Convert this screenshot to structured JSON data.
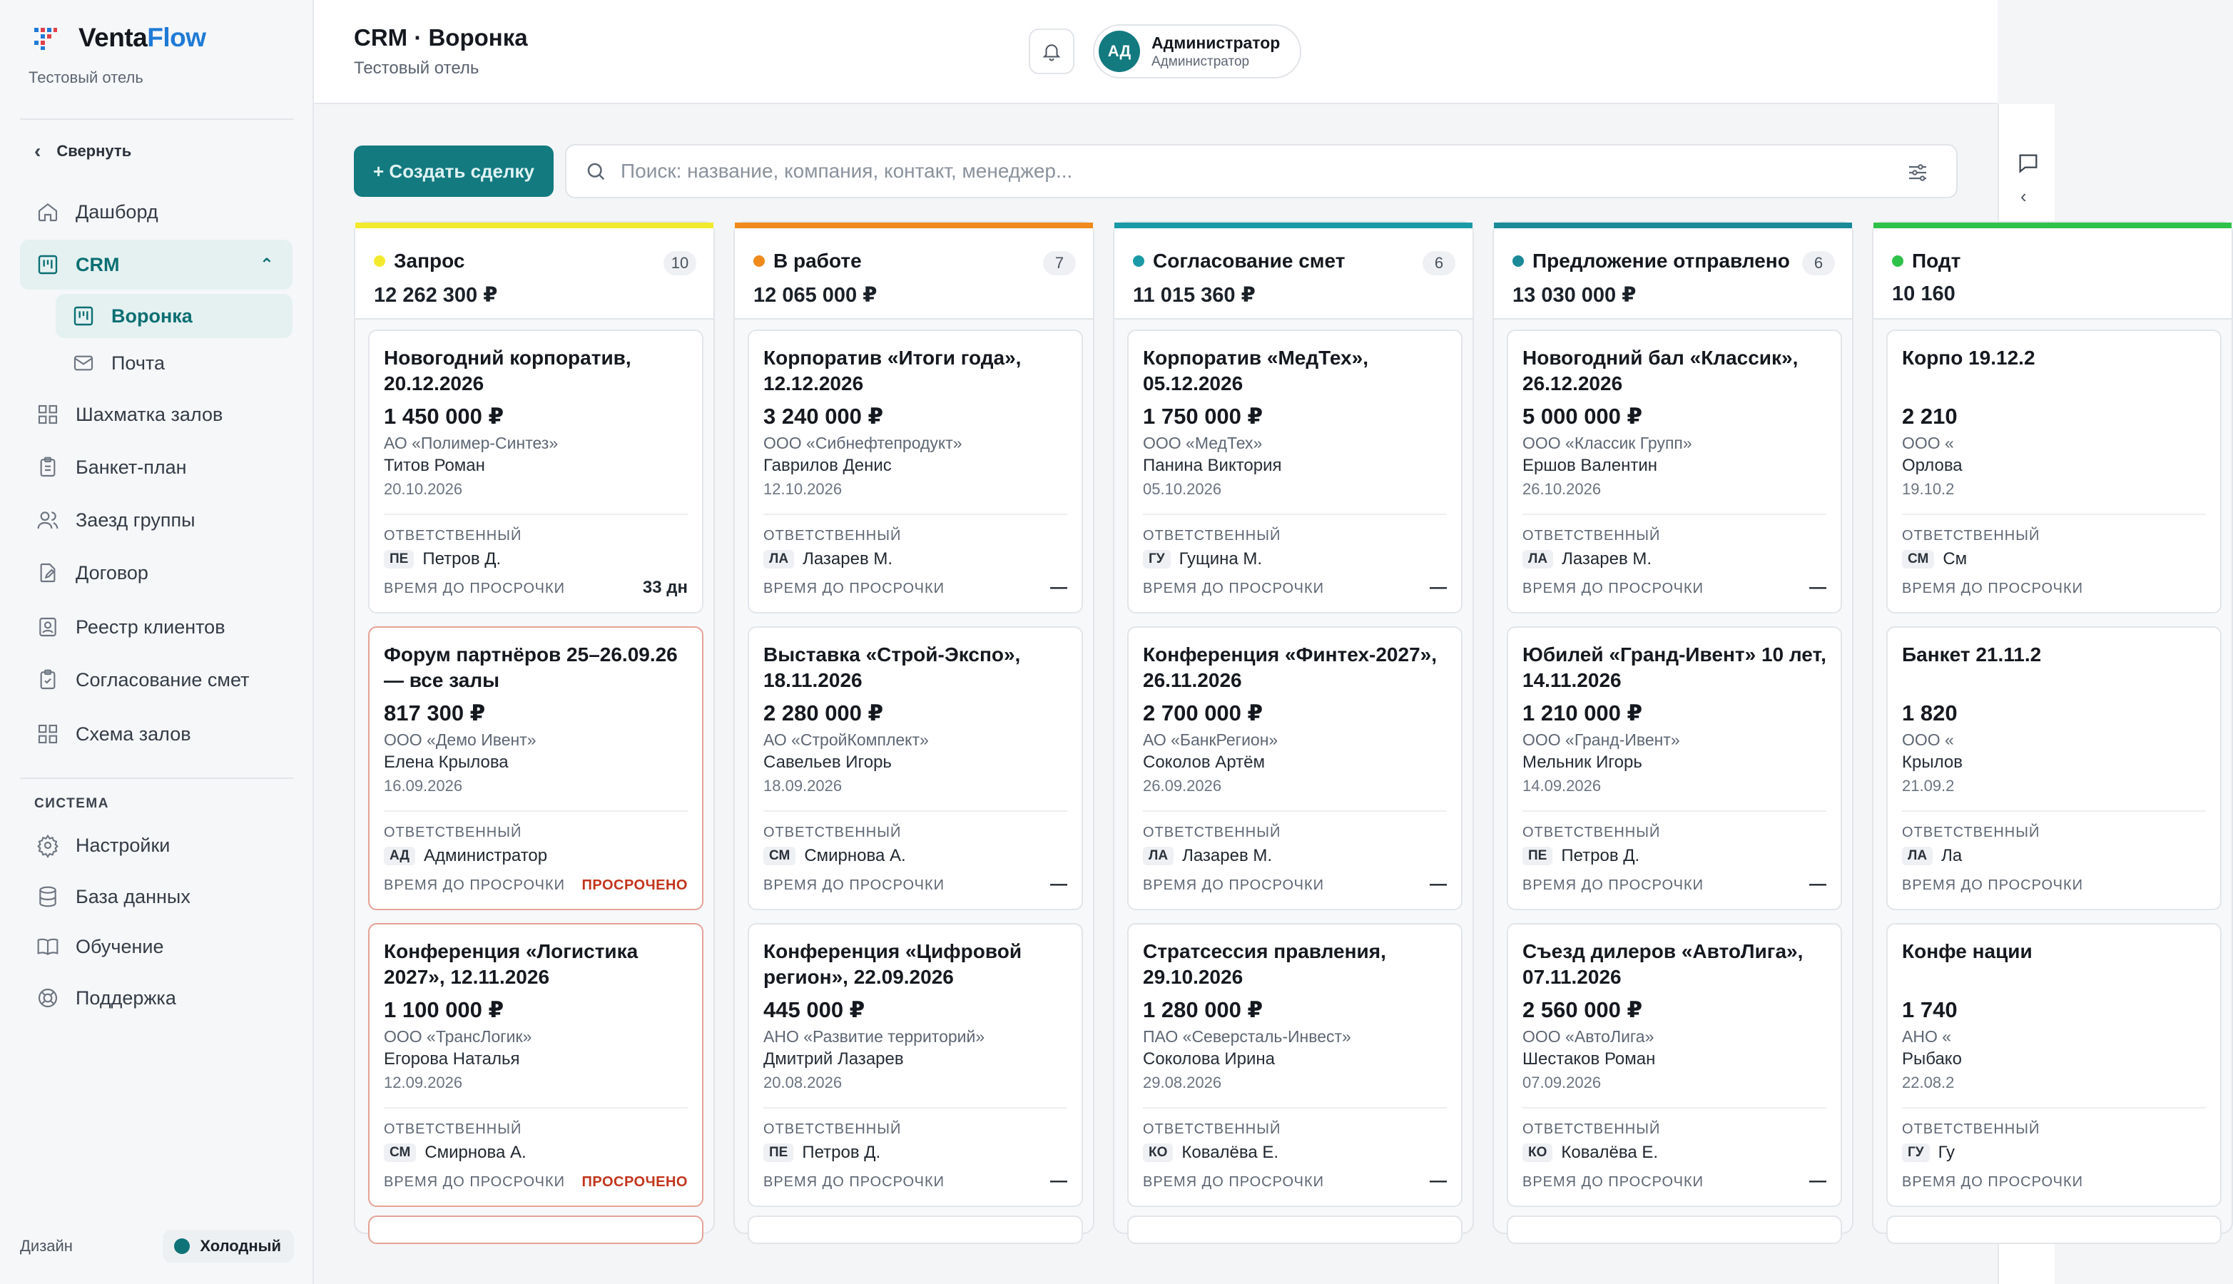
{
  "app": {
    "logo_part1": "Venta",
    "logo_part2": "Flow",
    "org": "Тестовый отель"
  },
  "sidebar": {
    "collapse_label": "Свернуть",
    "items": [
      {
        "label": "Дашборд",
        "icon": "home-icon"
      },
      {
        "label": "CRM",
        "icon": "crm-icon"
      },
      {
        "label": "Воронка",
        "icon": "funnel-icon"
      },
      {
        "label": "Почта",
        "icon": "mail-icon"
      },
      {
        "label": "Шахматка залов",
        "icon": "grid-icon"
      },
      {
        "label": "Банкет-план",
        "icon": "clipboard-icon"
      },
      {
        "label": "Заезд группы",
        "icon": "users-icon"
      },
      {
        "label": "Договор",
        "icon": "document-edit-icon"
      },
      {
        "label": "Реестр клиентов",
        "icon": "contact-icon"
      },
      {
        "label": "Согласование смет",
        "icon": "clipboard-check-icon"
      },
      {
        "label": "Схема залов",
        "icon": "grid-icon"
      }
    ],
    "system_title": "СИСТЕМА",
    "system_items": [
      {
        "label": "Настройки",
        "icon": "gear-icon"
      },
      {
        "label": "База данных",
        "icon": "database-icon"
      },
      {
        "label": "Обучение",
        "icon": "book-icon"
      },
      {
        "label": "Поддержка",
        "icon": "lifebuoy-icon"
      }
    ],
    "design_label": "Дизайн",
    "theme_label": "Холодный",
    "theme_color": "#0f7378"
  },
  "header": {
    "title": "CRM · Воронка",
    "subtitle": "Тестовый отель",
    "user_initials": "АД",
    "user_name": "Администратор",
    "user_role": "Администратор"
  },
  "toolbar": {
    "create_label": "+ Создать сделку",
    "search_placeholder": "Поиск: название, компания, контакт, менеджер..."
  },
  "labels": {
    "responsible": "ОТВЕТСТВЕННЫЙ",
    "due": "ВРЕМЯ ДО ПРОСРОЧКИ"
  },
  "columns": [
    {
      "name": "Запрос",
      "count": "10",
      "sum": "12 262 300 ₽",
      "color": "#f3ea2e",
      "cards": [
        {
          "title": "Новогодний корпоратив, 20.12.2026",
          "amount": "1 450 000 ₽",
          "company": "АО «Полимер-Синтез»",
          "contact": "Титов Роман",
          "date": "20.10.2026",
          "initials": "ПЕ",
          "manager": "Петров Д.",
          "due": "33 дн",
          "overdue": false
        },
        {
          "title": "Форум партнёров 25–26.09.26 — все залы",
          "amount": "817 300 ₽",
          "company": "ООО «Демо Ивент»",
          "contact": "Елена Крылова",
          "date": "16.09.2026",
          "initials": "АД",
          "manager": "Администратор",
          "due": "ПРОСРОЧЕНО",
          "overdue": true
        },
        {
          "title": "Конференция «Логистика 2027», 12.11.2026",
          "amount": "1 100 000 ₽",
          "company": "ООО «ТрансЛогик»",
          "contact": "Егорова Наталья",
          "date": "12.09.2026",
          "initials": "СМ",
          "manager": "Смирнова А.",
          "due": "ПРОСРОЧЕНО",
          "overdue": true
        }
      ]
    },
    {
      "name": "В работе",
      "count": "7",
      "sum": "12 065 000 ₽",
      "color": "#f08a1c",
      "cards": [
        {
          "title": "Корпоратив «Итоги года», 12.12.2026",
          "amount": "3 240 000 ₽",
          "company": "ООО «Сибнефтепродукт»",
          "contact": "Гаврилов Денис",
          "date": "12.10.2026",
          "initials": "ЛА",
          "manager": "Лазарев М.",
          "due": "—",
          "overdue": false
        },
        {
          "title": "Выставка «Строй-Экспо», 18.11.2026",
          "amount": "2 280 000 ₽",
          "company": "АО «СтройКомплект»",
          "contact": "Савельев Игорь",
          "date": "18.09.2026",
          "initials": "СМ",
          "manager": "Смирнова А.",
          "due": "—",
          "overdue": false
        },
        {
          "title": "Конференция «Цифровой регион», 22.09.2026",
          "amount": "445 000 ₽",
          "company": "АНО «Развитие территорий»",
          "contact": "Дмитрий Лазарев",
          "date": "20.08.2026",
          "initials": "ПЕ",
          "manager": "Петров Д.",
          "due": "—",
          "overdue": false
        }
      ]
    },
    {
      "name": "Согласование смет",
      "count": "6",
      "sum": "11 015 360 ₽",
      "color": "#1a9aa6",
      "cards": [
        {
          "title": "Корпоратив «МедТех», 05.12.2026",
          "amount": "1 750 000 ₽",
          "company": "ООО «МедТех»",
          "contact": "Панина Виктория",
          "date": "05.10.2026",
          "initials": "ГУ",
          "manager": "Гущина М.",
          "due": "—",
          "overdue": false
        },
        {
          "title": "Конференция «Финтех-2027», 26.11.2026",
          "amount": "2 700 000 ₽",
          "company": "АО «БанкРегион»",
          "contact": "Соколов Артём",
          "date": "26.09.2026",
          "initials": "ЛА",
          "manager": "Лазарев М.",
          "due": "—",
          "overdue": false
        },
        {
          "title": "Стратсессия правления, 29.10.2026",
          "amount": "1 280 000 ₽",
          "company": "ПАО «Северсталь-Инвест»",
          "contact": "Соколова Ирина",
          "date": "29.08.2026",
          "initials": "КО",
          "manager": "Ковалёва Е.",
          "due": "—",
          "overdue": false
        }
      ]
    },
    {
      "name": "Предложение отправлено",
      "count": "6",
      "sum": "13 030 000 ₽",
      "color": "#1a8a98",
      "cards": [
        {
          "title": "Новогодний бал «Классик», 26.12.2026",
          "amount": "5 000 000 ₽",
          "company": "ООО «Классик Групп»",
          "contact": "Ершов Валентин",
          "date": "26.10.2026",
          "initials": "ЛА",
          "manager": "Лазарев М.",
          "due": "—",
          "overdue": false
        },
        {
          "title": "Юбилей «Гранд-Ивент» 10 лет, 14.11.2026",
          "amount": "1 210 000 ₽",
          "company": "ООО «Гранд-Ивент»",
          "contact": "Мельник Игорь",
          "date": "14.09.2026",
          "initials": "ПЕ",
          "manager": "Петров Д.",
          "due": "—",
          "overdue": false
        },
        {
          "title": "Съезд дилеров «АвтоЛига», 07.11.2026",
          "amount": "2 560 000 ₽",
          "company": "ООО «АвтоЛига»",
          "contact": "Шестаков Роман",
          "date": "07.09.2026",
          "initials": "КО",
          "manager": "Ковалёва Е.",
          "due": "—",
          "overdue": false
        }
      ]
    },
    {
      "name": "Подт",
      "count": "",
      "sum": "10 160",
      "color": "#2fc24a",
      "cards": [
        {
          "title": "Корпо 19.12.2",
          "amount": "2 210",
          "company": "ООО «",
          "contact": "Орлова",
          "date": "19.10.2",
          "initials": "СМ",
          "manager": "См",
          "due": "",
          "overdue": false
        },
        {
          "title": "Банкет 21.11.2",
          "amount": "1 820",
          "company": "ООО «",
          "contact": "Крылов",
          "date": "21.09.2",
          "initials": "ЛА",
          "manager": "Ла",
          "due": "",
          "overdue": false
        },
        {
          "title": "Конфе нации",
          "amount": "1 740",
          "company": "АНО «",
          "contact": "Рыбако",
          "date": "22.08.2",
          "initials": "ГУ",
          "manager": "Гу",
          "due": "",
          "overdue": false
        }
      ]
    }
  ]
}
